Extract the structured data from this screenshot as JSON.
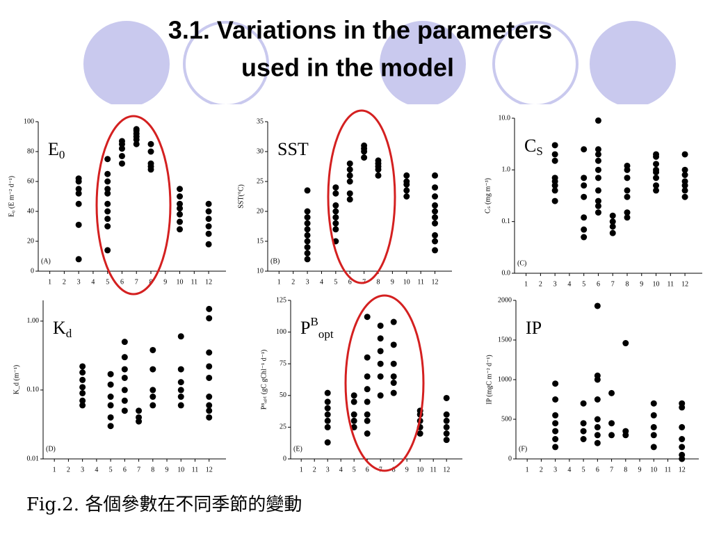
{
  "slide": {
    "title": [
      "3.1. Variations in the parameters",
      "used in the model"
    ],
    "caption": "Fig.2. 各個參數在不同季節的變動"
  },
  "chart_data": [
    {
      "type": "scatter",
      "label": {
        "main": "E",
        "sub": "0"
      },
      "panel": "(A)",
      "y_label": "E₀ (E m⁻² d⁻¹)",
      "xlim": [
        0.2,
        13.2
      ],
      "xticks": [
        1,
        2,
        3,
        4,
        5,
        6,
        7,
        8,
        9,
        10,
        11,
        12
      ],
      "ylim": [
        0,
        100
      ],
      "yticks": [
        0,
        20,
        40,
        60,
        80,
        100
      ],
      "log_y": false,
      "color": "#000000",
      "x": [
        3,
        3,
        3,
        3,
        3,
        3,
        3,
        5,
        5,
        5,
        5,
        5,
        5,
        5,
        5,
        5,
        5,
        6,
        6,
        6,
        6,
        6,
        7,
        7,
        7,
        7,
        7,
        7,
        8,
        8,
        8,
        8,
        8,
        10,
        10,
        10,
        10,
        10,
        10,
        10,
        12,
        12,
        12,
        12,
        12,
        12
      ],
      "y": [
        8,
        31,
        45,
        52,
        55,
        60,
        62,
        14,
        30,
        35,
        40,
        45,
        52,
        55,
        60,
        65,
        75,
        72,
        77,
        82,
        85,
        87,
        85,
        88,
        90,
        92,
        94,
        95,
        68,
        70,
        72,
        80,
        85,
        28,
        33,
        38,
        42,
        45,
        50,
        55,
        18,
        25,
        30,
        35,
        40,
        45
      ]
    },
    {
      "type": "scatter",
      "label": {
        "main": "SST"
      },
      "panel": "(B)",
      "y_label": "SST(°C)",
      "xlim": [
        0.2,
        13.2
      ],
      "xticks": [
        1,
        2,
        3,
        4,
        5,
        6,
        7,
        8,
        9,
        10,
        11,
        12
      ],
      "ylim": [
        10,
        35
      ],
      "yticks": [
        10,
        15,
        20,
        25,
        30,
        35
      ],
      "log_y": false,
      "color": "#000000",
      "x": [
        3,
        3,
        3,
        3,
        3,
        3,
        3,
        3,
        3,
        3,
        5,
        5,
        5,
        5,
        5,
        5,
        5,
        5,
        6,
        6,
        6,
        6,
        6,
        6,
        7,
        7,
        7,
        7,
        8,
        8,
        8,
        8,
        8,
        10,
        10,
        10,
        10,
        10,
        12,
        12,
        12,
        12,
        12,
        12,
        12,
        12,
        12,
        12
      ],
      "y": [
        12,
        13,
        14,
        15,
        16,
        17,
        18,
        19,
        20,
        23.5,
        15,
        17,
        18,
        19,
        20,
        21,
        23,
        24,
        22,
        23,
        25,
        26,
        27,
        28,
        29,
        30,
        30.5,
        31,
        26,
        27,
        27.5,
        28,
        28.5,
        22.5,
        23.5,
        24.5,
        25,
        26,
        13.5,
        15,
        16,
        18,
        19,
        20,
        21,
        22.5,
        24,
        26
      ]
    },
    {
      "type": "scatter",
      "label": {
        "main": "C",
        "sub": "S"
      },
      "panel": "(C)",
      "y_label": "Cₛ (mg m⁻³)",
      "xlim": [
        0.2,
        13.2
      ],
      "xticks": [
        1,
        2,
        3,
        4,
        5,
        6,
        7,
        8,
        9,
        10,
        11,
        12
      ],
      "ylim": [
        0.01,
        10
      ],
      "yticks": [
        {
          "value": 0.01,
          "label": "0.0"
        },
        0.1,
        {
          "value": 1,
          "label": "1.0"
        },
        {
          "value": 10,
          "label": "10.0"
        }
      ],
      "log_y": true,
      "color": "#000000",
      "x": [
        3,
        3,
        3,
        3,
        3,
        3,
        3,
        3,
        5,
        5,
        5,
        5,
        5,
        5,
        5,
        6,
        6,
        6,
        6,
        6,
        6,
        6,
        6,
        6,
        6,
        7,
        7,
        7,
        7,
        8,
        8,
        8,
        8,
        8,
        8,
        8,
        10,
        10,
        10,
        10,
        10,
        10,
        10,
        10,
        12,
        12,
        12,
        12,
        12,
        12,
        12
      ],
      "y": [
        0.25,
        0.4,
        0.5,
        0.6,
        0.7,
        1.5,
        2,
        3,
        0.05,
        0.07,
        0.12,
        0.3,
        0.5,
        0.7,
        2.5,
        0.15,
        0.2,
        0.25,
        0.4,
        0.7,
        1,
        1.5,
        2,
        2.5,
        9,
        0.06,
        0.08,
        0.1,
        0.13,
        0.12,
        0.15,
        0.3,
        0.4,
        0.7,
        1,
        1.2,
        0.4,
        0.5,
        0.7,
        0.9,
        1,
        1.3,
        1.8,
        2,
        0.3,
        0.4,
        0.5,
        0.6,
        0.8,
        1,
        2
      ]
    },
    {
      "type": "scatter",
      "label": {
        "main": "K",
        "sub": "d"
      },
      "panel": "(D)",
      "y_label": "K_d (m⁻¹)",
      "xlim": [
        0.2,
        13.2
      ],
      "xticks": [
        1,
        2,
        3,
        4,
        5,
        6,
        7,
        8,
        9,
        10,
        11,
        12
      ],
      "ylim": [
        0.01,
        2
      ],
      "yticks": [
        0.01,
        {
          "value": 0.1,
          "label": "0.10"
        },
        {
          "value": 1,
          "label": "1.00"
        }
      ],
      "log_y": true,
      "color": "#000000",
      "x": [
        3,
        3,
        3,
        3,
        3,
        3,
        3,
        5,
        5,
        5,
        5,
        5,
        5,
        6,
        6,
        6,
        6,
        6,
        6,
        6,
        7,
        7,
        7,
        8,
        8,
        8,
        8,
        8,
        10,
        10,
        10,
        10,
        10,
        10,
        12,
        12,
        12,
        12,
        12,
        12,
        12,
        12,
        12
      ],
      "y": [
        0.06,
        0.07,
        0.09,
        0.11,
        0.14,
        0.18,
        0.22,
        0.03,
        0.04,
        0.06,
        0.08,
        0.12,
        0.17,
        0.05,
        0.07,
        0.1,
        0.15,
        0.2,
        0.3,
        0.5,
        0.035,
        0.04,
        0.05,
        0.06,
        0.08,
        0.1,
        0.2,
        0.38,
        0.06,
        0.08,
        0.1,
        0.13,
        0.2,
        0.6,
        0.04,
        0.05,
        0.06,
        0.08,
        0.15,
        0.22,
        0.35,
        1.1,
        1.5
      ]
    },
    {
      "type": "scatter",
      "label": {
        "main": "P",
        "sup": "B",
        "sub": "opt"
      },
      "panel": "(E)",
      "y_label": "Pᴮₒₚₜ (gC gChl⁻¹ d⁻¹)",
      "xlim": [
        0.2,
        13.2
      ],
      "xticks": [
        1,
        2,
        3,
        4,
        5,
        6,
        7,
        8,
        9,
        10,
        11,
        12
      ],
      "ylim": [
        0,
        125
      ],
      "yticks": [
        0,
        25,
        50,
        75,
        100,
        125
      ],
      "log_y": false,
      "color": "#000000",
      "x": [
        3,
        3,
        3,
        3,
        3,
        3,
        3,
        5,
        5,
        5,
        5,
        5,
        6,
        6,
        6,
        6,
        6,
        6,
        6,
        6,
        7,
        7,
        7,
        7,
        7,
        7,
        8,
        8,
        8,
        8,
        8,
        8,
        10,
        10,
        10,
        10,
        10,
        12,
        12,
        12,
        12,
        12,
        12
      ],
      "y": [
        13,
        25,
        30,
        35,
        40,
        45,
        52,
        25,
        30,
        35,
        45,
        50,
        20,
        30,
        35,
        45,
        55,
        65,
        80,
        112,
        50,
        65,
        75,
        85,
        95,
        105,
        52,
        60,
        65,
        75,
        90,
        108,
        20,
        25,
        30,
        35,
        38,
        15,
        20,
        25,
        30,
        35,
        48
      ]
    },
    {
      "type": "scatter",
      "label": {
        "main": "IP"
      },
      "panel": "(F)",
      "y_label": "IP (mgC m⁻² d⁻¹)",
      "xlim": [
        0.2,
        13.2
      ],
      "xticks": [
        1,
        2,
        3,
        4,
        5,
        6,
        7,
        8,
        9,
        10,
        11,
        12
      ],
      "ylim": [
        0,
        2000
      ],
      "yticks": [
        0,
        500,
        1000,
        1500,
        2000
      ],
      "log_y": false,
      "color": "#000000",
      "x": [
        3,
        3,
        3,
        3,
        3,
        3,
        3,
        5,
        5,
        5,
        5,
        6,
        6,
        6,
        6,
        6,
        6,
        6,
        6,
        7,
        7,
        7,
        8,
        8,
        8,
        10,
        10,
        10,
        10,
        10,
        12,
        12,
        12,
        12,
        12,
        12,
        12
      ],
      "y": [
        150,
        250,
        350,
        450,
        550,
        750,
        950,
        250,
        350,
        450,
        700,
        200,
        300,
        400,
        500,
        750,
        1000,
        1050,
        1930,
        300,
        450,
        830,
        300,
        350,
        1460,
        150,
        300,
        400,
        550,
        700,
        0,
        50,
        150,
        250,
        400,
        650,
        700
      ]
    }
  ]
}
